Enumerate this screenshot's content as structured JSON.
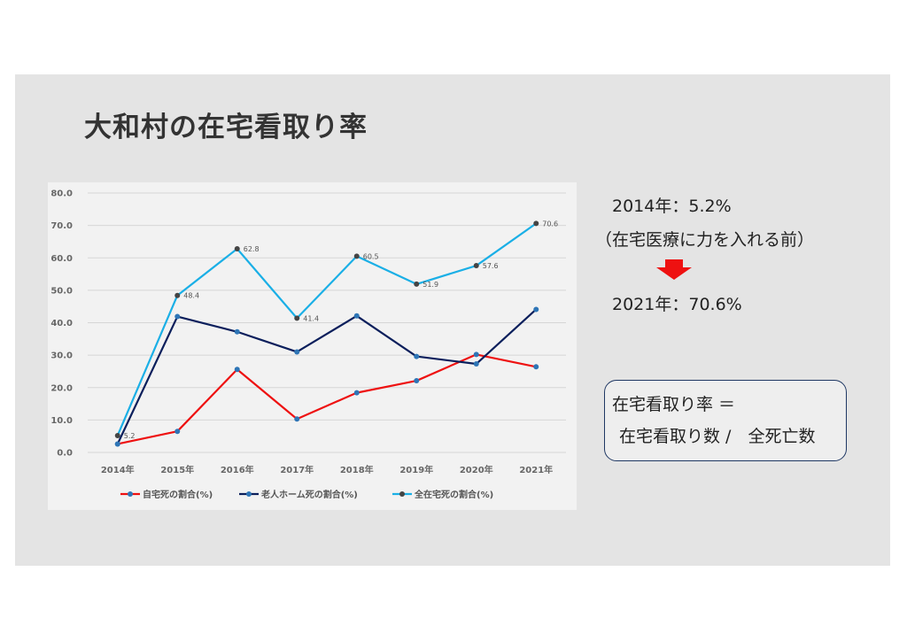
{
  "slide": {
    "title": "大和村の在宅看取り率"
  },
  "notes": {
    "line1": "2014年：5.2%",
    "line2": "（在宅医療に力を入れる前）",
    "line3": "2021年：70.6%",
    "arrow_color": "#ee1111"
  },
  "formula": {
    "line1": "在宅看取り率 ＝",
    "line2": "在宅看取り数 /　全死亡数"
  },
  "chart_data": {
    "type": "line",
    "categories": [
      "2014年",
      "2015年",
      "2016年",
      "2017年",
      "2018年",
      "2019年",
      "2020年",
      "2021年"
    ],
    "ylim": [
      0,
      80
    ],
    "yticks": [
      "0.0",
      "10.0",
      "20.0",
      "30.0",
      "40.0",
      "50.0",
      "60.0",
      "70.0",
      "80.0"
    ],
    "grid": true,
    "legend_position": "bottom",
    "series": [
      {
        "name": "自宅死の割合(%)",
        "color": "#ee1111",
        "marker_color": "#2e75b6",
        "values": [
          2.6,
          6.5,
          25.6,
          10.3,
          18.4,
          22.1,
          30.2,
          26.4
        ],
        "labels": [
          "",
          "",
          "",
          "",
          "",
          "",
          "",
          ""
        ]
      },
      {
        "name": "老人ホーム死の割合(%)",
        "color": "#0b1f5c",
        "marker_color": "#2e75b6",
        "values": [
          2.6,
          41.9,
          37.2,
          31.0,
          42.1,
          29.6,
          27.3,
          44.1
        ],
        "labels": [
          "",
          "",
          "",
          "",
          "",
          "",
          "",
          ""
        ]
      },
      {
        "name": "全在宅死の割合(%)",
        "color": "#1aafe6",
        "marker_color": "#444444",
        "values": [
          5.2,
          48.4,
          62.8,
          41.4,
          60.5,
          51.9,
          57.6,
          70.6
        ],
        "labels": [
          "5.2",
          "48.4",
          "62.8",
          "41.4",
          "60.5",
          "51.9",
          "57.6",
          "70.6"
        ]
      }
    ]
  }
}
